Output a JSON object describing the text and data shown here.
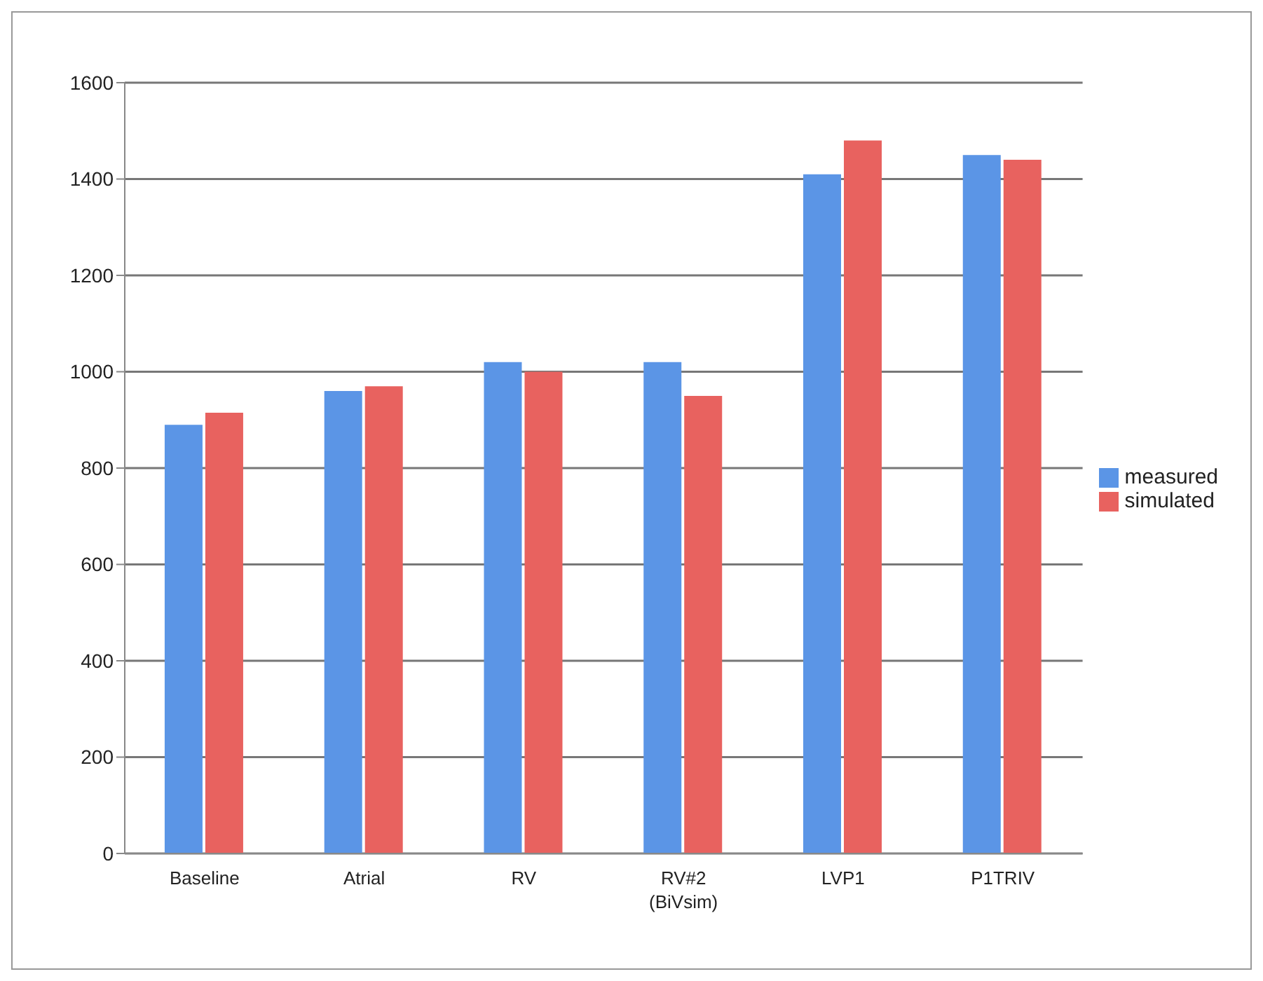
{
  "chart_data": {
    "type": "bar",
    "categories": [
      "Baseline",
      "Atrial",
      "RV",
      "RV#2 (BiVsim)",
      "LVP1",
      "P1TRIV"
    ],
    "series": [
      {
        "name": "measured",
        "color": "#5b95e6",
        "values": [
          890,
          960,
          1020,
          1020,
          1410,
          1450
        ]
      },
      {
        "name": "simulated",
        "color": "#e8625f",
        "values": [
          915,
          970,
          1000,
          950,
          1480,
          1440
        ]
      }
    ],
    "ylim": [
      0,
      1600
    ],
    "yticks": [
      0,
      200,
      400,
      600,
      800,
      1000,
      1200,
      1400,
      1600
    ],
    "grid": "y",
    "legend": "right"
  }
}
